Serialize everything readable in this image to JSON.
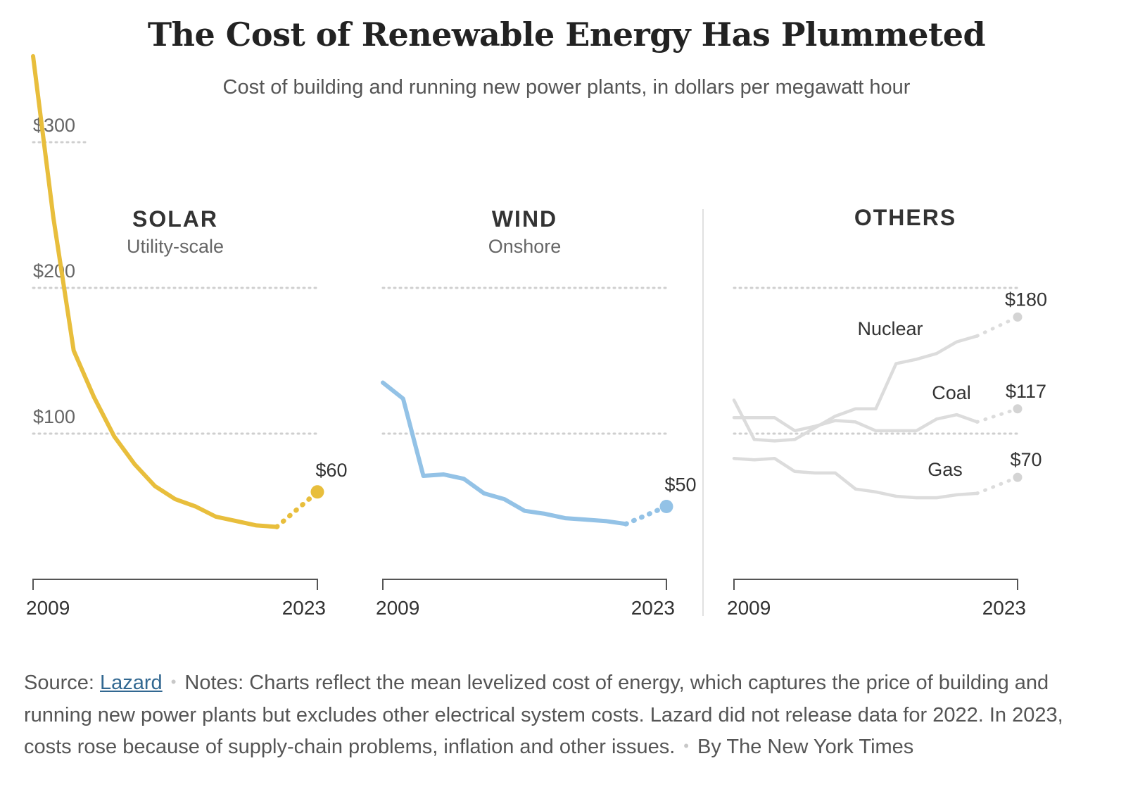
{
  "title": "The Cost of Renewable Energy Has Plummeted",
  "subtitle": "Cost of building and running new power plants, in dollars per megawatt hour",
  "colors": {
    "solar": "#e8be3c",
    "wind": "#93c2e6",
    "others": "#dcdcdc",
    "others_marker": "#d4d4d4",
    "gridline": "#cfcfcf",
    "axis": "#555555",
    "text": "#333333",
    "muted": "#666666"
  },
  "footer": {
    "source_label": "Source:",
    "source_link": "Lazard",
    "notes": "Notes: Charts reflect the mean levelized cost of energy, which captures the price of building and running new power plants but excludes other electrical system costs. Lazard did not release data for 2022. In 2023, costs rose because of supply-chain problems, inflation and other issues.",
    "byline": "By The New York Times"
  },
  "chart_data": [
    {
      "type": "line",
      "title": "SOLAR",
      "subtitle": "Utility-scale",
      "x_ticks": [
        "2009",
        "2023"
      ],
      "xlim": [
        2009,
        2023
      ],
      "y_ticks": [
        {
          "value": 300,
          "label": "$300"
        },
        {
          "value": 200,
          "label": "$200"
        },
        {
          "value": 100,
          "label": "$100"
        }
      ],
      "ylim": [
        0,
        350
      ],
      "series": [
        {
          "key": "solar",
          "x": [
            2009,
            2010,
            2011,
            2012,
            2013,
            2014,
            2015,
            2016,
            2017,
            2018,
            2019,
            2020,
            2021
          ],
          "values": [
            359,
            248,
            157,
            125,
            98,
            79,
            64,
            55,
            50,
            43,
            40,
            37,
            36
          ],
          "projection": {
            "x": [
              2021,
              2023
            ],
            "values": [
              36,
              60
            ]
          },
          "end_label": "$60"
        }
      ]
    },
    {
      "type": "line",
      "title": "WIND",
      "subtitle": "Onshore",
      "x_ticks": [
        "2009",
        "2023"
      ],
      "xlim": [
        2009,
        2023
      ],
      "y_ticks": [
        {
          "value": 200,
          "label": ""
        },
        {
          "value": 100,
          "label": ""
        }
      ],
      "ylim": [
        0,
        350
      ],
      "series": [
        {
          "key": "wind",
          "x": [
            2009,
            2010,
            2011,
            2012,
            2013,
            2014,
            2015,
            2016,
            2017,
            2018,
            2019,
            2020,
            2021
          ],
          "values": [
            135,
            124,
            71,
            72,
            69,
            59,
            55,
            47,
            45,
            42,
            41,
            40,
            38
          ],
          "projection": {
            "x": [
              2021,
              2023
            ],
            "values": [
              38,
              50
            ]
          },
          "end_label": "$50"
        }
      ]
    },
    {
      "type": "line",
      "title": "OTHERS",
      "subtitle": "",
      "x_ticks": [
        "2009",
        "2023"
      ],
      "xlim": [
        2009,
        2023
      ],
      "y_ticks": [
        {
          "value": 200,
          "label": ""
        },
        {
          "value": 100,
          "label": ""
        }
      ],
      "ylim": [
        0,
        350
      ],
      "series": [
        {
          "key": "nuclear",
          "name": "Nuclear",
          "x": [
            2009,
            2010,
            2011,
            2012,
            2013,
            2014,
            2015,
            2016,
            2017,
            2018,
            2019,
            2020,
            2021
          ],
          "values": [
            123,
            96,
            95,
            96,
            104,
            112,
            117,
            117,
            148,
            151,
            155,
            163,
            167
          ],
          "projection": {
            "x": [
              2021,
              2023
            ],
            "values": [
              167,
              180
            ]
          },
          "end_label": "$180"
        },
        {
          "key": "coal",
          "name": "Coal",
          "x": [
            2009,
            2010,
            2011,
            2012,
            2013,
            2014,
            2015,
            2016,
            2017,
            2018,
            2019,
            2020,
            2021
          ],
          "values": [
            111,
            111,
            111,
            102,
            105,
            109,
            108,
            102,
            102,
            102,
            110,
            113,
            108
          ],
          "projection": {
            "x": [
              2021,
              2023
            ],
            "values": [
              108,
              117
            ]
          },
          "end_label": "$117"
        },
        {
          "key": "gas",
          "name": "Gas",
          "x": [
            2009,
            2010,
            2011,
            2012,
            2013,
            2014,
            2015,
            2016,
            2017,
            2018,
            2019,
            2020,
            2021
          ],
          "values": [
            83,
            82,
            83,
            74,
            73,
            73,
            62,
            60,
            57,
            56,
            56,
            58,
            59
          ],
          "projection": {
            "x": [
              2021,
              2023
            ],
            "values": [
              59,
              70
            ]
          },
          "end_label": "$70"
        }
      ]
    }
  ]
}
